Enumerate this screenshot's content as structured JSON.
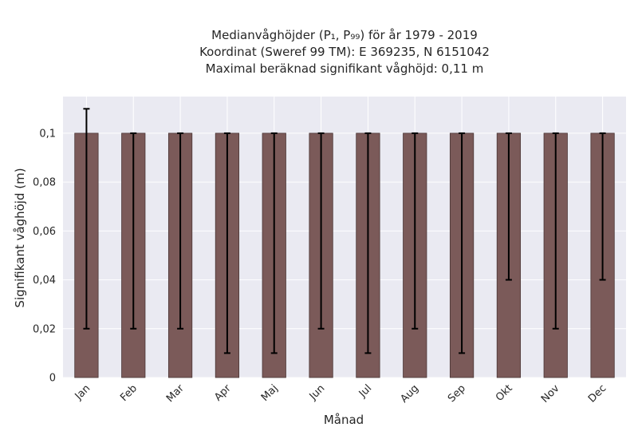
{
  "chart_data": {
    "type": "bar",
    "title_lines": [
      "Medianvåghöjder (P₁, P₉₉) för år 1979 - 2019",
      "Koordinat (Sweref 99 TM): E 369235, N 6151042",
      "Maximal beräknad signifikant våghöjd: 0,11 m"
    ],
    "xlabel": "Månad",
    "ylabel": "Signifikant våghöjd (m)",
    "categories": [
      "Jan",
      "Feb",
      "Mar",
      "Apr",
      "Maj",
      "Jun",
      "Jul",
      "Aug",
      "Sep",
      "Okt",
      "Nov",
      "Dec"
    ],
    "values": [
      0.1,
      0.1,
      0.1,
      0.1,
      0.1,
      0.1,
      0.1,
      0.1,
      0.1,
      0.1,
      0.1,
      0.1
    ],
    "p1": [
      0.02,
      0.02,
      0.02,
      0.01,
      0.01,
      0.02,
      0.01,
      0.02,
      0.01,
      0.04,
      0.02,
      0.04
    ],
    "p99": [
      0.11,
      0.1,
      0.1,
      0.1,
      0.1,
      0.1,
      0.1,
      0.1,
      0.1,
      0.1,
      0.1,
      0.1
    ],
    "ylim": [
      0,
      0.115
    ],
    "yticks": [
      0,
      0.02,
      0.04,
      0.06,
      0.08,
      0.1
    ],
    "ytick_labels": [
      "0",
      "0,02",
      "0,04",
      "0,06",
      "0,08",
      "0,1"
    ],
    "grid": true,
    "colors": {
      "bar": "#7b5a59",
      "bar_edge": "#4a3636",
      "background": "#eaeaf2",
      "grid": "#ffffff",
      "errorbar": "#000000"
    }
  }
}
